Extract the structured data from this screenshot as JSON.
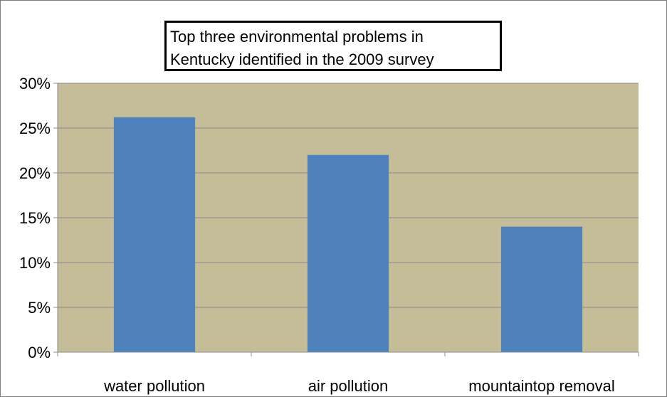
{
  "chart_data": {
    "type": "bar",
    "title_lines": [
      "Top three environmental problems in",
      "Kentucky identified in the 2009 survey"
    ],
    "categories": [
      "water pollution",
      "air pollution",
      "mountaintop removal"
    ],
    "values": [
      26.2,
      22.0,
      14.0
    ],
    "ylim": [
      0,
      30
    ],
    "yticks": [
      0,
      5,
      10,
      15,
      20,
      25,
      30
    ],
    "ytick_labels": [
      "0%",
      "5%",
      "10%",
      "15%",
      "20%",
      "25%",
      "30%"
    ],
    "xlabel": "",
    "ylabel": "",
    "grid": true,
    "legend": "none",
    "colors": {
      "plot_area": "#C4BD97",
      "bar": "#4F81BD",
      "gridline": "#8C8C8C",
      "axis": "#8C8C8C"
    }
  }
}
